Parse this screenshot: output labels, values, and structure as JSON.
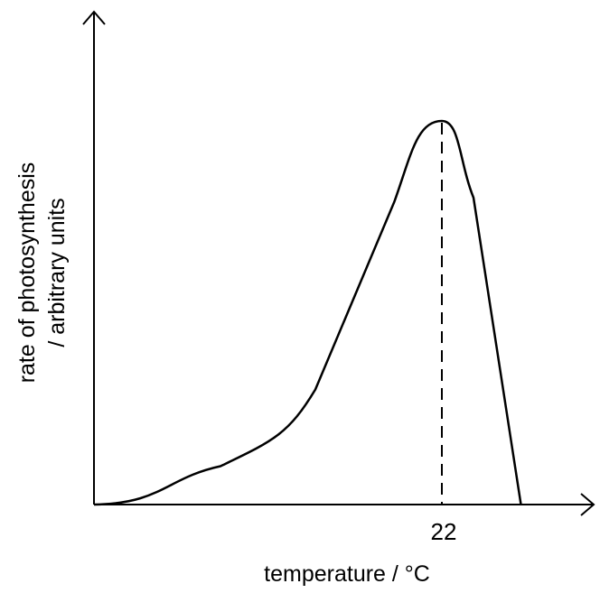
{
  "chart_data": {
    "type": "line",
    "title": "",
    "xlabel": "temperature / °C",
    "ylabel_lines": [
      "rate of photosynthesis",
      "/ arbitrary units"
    ],
    "marked_x": 22,
    "marked_x_label": "22",
    "grid": false,
    "legend": "none",
    "series": [
      {
        "line_color": "#000000",
        "marker_line": "dashed vertical at maximum",
        "x": [
          0,
          8,
          14,
          19,
          22,
          24,
          27
        ],
        "y": [
          0,
          10,
          30,
          79,
          100,
          80,
          0
        ]
      }
    ]
  },
  "colors": {
    "ink": "#000000",
    "background": "#ffffff"
  }
}
